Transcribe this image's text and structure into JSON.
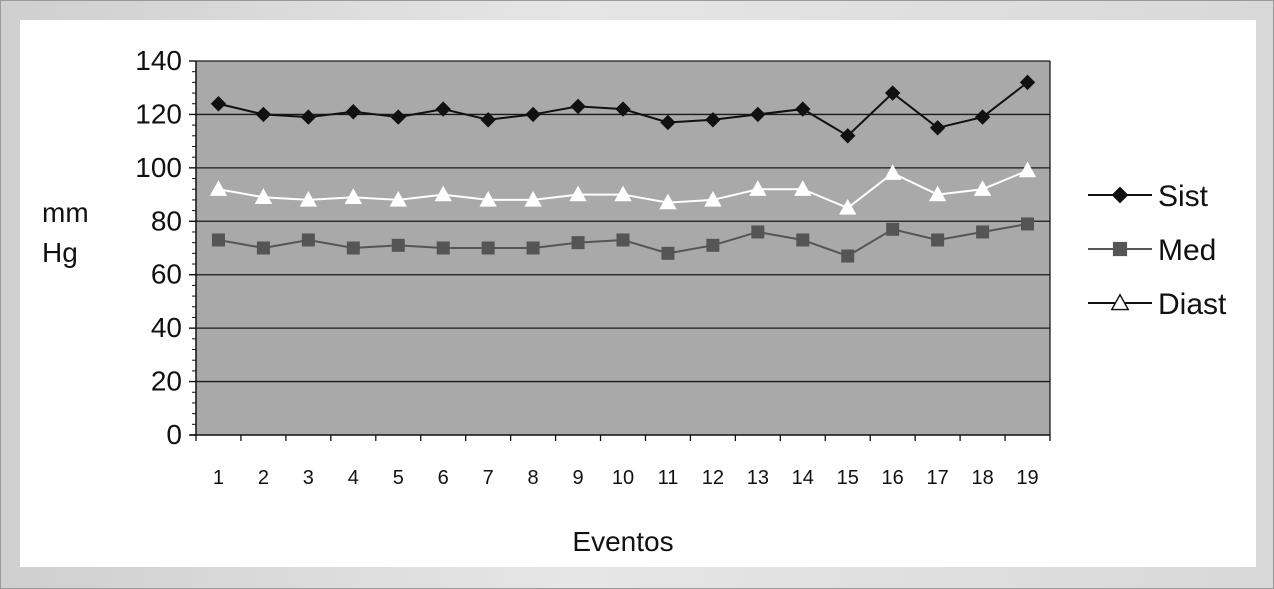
{
  "chart_data": {
    "type": "line",
    "title": "",
    "xlabel": "Eventos",
    "ylabel": "mm Hg",
    "ylabel_lines": [
      "mm",
      "Hg"
    ],
    "x": [
      1,
      2,
      3,
      4,
      5,
      6,
      7,
      8,
      9,
      10,
      11,
      12,
      13,
      14,
      15,
      16,
      17,
      18,
      19
    ],
    "x_labels": [
      "1",
      "2",
      "3",
      "4",
      "5",
      "6",
      "7",
      "8",
      "9",
      "10",
      "11",
      "12",
      "13",
      "14",
      "15",
      "16",
      "17",
      "18",
      "19"
    ],
    "ylim": [
      0,
      140
    ],
    "yticks": [
      0,
      20,
      40,
      60,
      80,
      100,
      120,
      140
    ],
    "ytick_labels": [
      "0",
      "20",
      "40",
      "60",
      "80",
      "100",
      "120",
      "140"
    ],
    "grid": true,
    "legend_position": "right",
    "plot_background": "#a9a9a9",
    "series": [
      {
        "name": "Sist",
        "marker": "diamond",
        "color": "#111111",
        "marker_fill": "#111111",
        "values": [
          124,
          120,
          119,
          121,
          119,
          122,
          118,
          120,
          123,
          122,
          117,
          118,
          120,
          122,
          112,
          128,
          115,
          119,
          132
        ]
      },
      {
        "name": "Med",
        "marker": "square",
        "color": "#555555",
        "marker_fill": "#555555",
        "values": [
          73,
          70,
          73,
          70,
          71,
          70,
          70,
          70,
          72,
          73,
          68,
          71,
          76,
          73,
          67,
          77,
          73,
          76,
          79
        ]
      },
      {
        "name": "Diast",
        "marker": "triangle",
        "color": "#ffffff",
        "marker_fill": "#ffffff",
        "legend_line_color": "#111111",
        "legend_marker_fill": "#ffffff",
        "values": [
          92,
          89,
          88,
          89,
          88,
          90,
          88,
          88,
          90,
          90,
          87,
          88,
          92,
          92,
          85,
          98,
          90,
          92,
          99
        ]
      }
    ]
  }
}
